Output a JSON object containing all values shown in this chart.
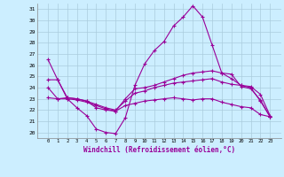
{
  "x": [
    0,
    1,
    2,
    3,
    4,
    5,
    6,
    7,
    8,
    9,
    10,
    11,
    12,
    13,
    14,
    15,
    16,
    17,
    18,
    19,
    20,
    21,
    22,
    23
  ],
  "line1": [
    26.5,
    24.7,
    23.0,
    22.2,
    21.5,
    20.3,
    20.0,
    19.9,
    21.3,
    24.2,
    26.1,
    27.3,
    28.1,
    29.5,
    30.3,
    31.3,
    30.3,
    27.8,
    25.3,
    24.8,
    24.2,
    24.0,
    22.8,
    21.4
  ],
  "line2": [
    24.7,
    24.7,
    23.1,
    23.0,
    22.8,
    22.2,
    22.0,
    21.9,
    23.0,
    23.9,
    24.0,
    24.2,
    24.5,
    24.8,
    25.1,
    25.3,
    25.4,
    25.5,
    25.3,
    25.2,
    24.1,
    23.9,
    22.9,
    21.4
  ],
  "line3": [
    24.0,
    23.0,
    23.1,
    23.0,
    22.8,
    22.5,
    22.2,
    22.0,
    22.8,
    23.5,
    23.7,
    24.0,
    24.2,
    24.4,
    24.5,
    24.6,
    24.7,
    24.8,
    24.5,
    24.3,
    24.2,
    24.1,
    23.4,
    21.5
  ],
  "line4": [
    23.1,
    23.0,
    23.0,
    22.9,
    22.7,
    22.4,
    22.1,
    21.9,
    22.4,
    22.6,
    22.8,
    22.9,
    23.0,
    23.1,
    23.0,
    22.9,
    23.0,
    23.0,
    22.7,
    22.5,
    22.3,
    22.2,
    21.6,
    21.4
  ],
  "xlabel": "Windchill (Refroidissement éolien,°C)",
  "ylim": [
    19.5,
    31.5
  ],
  "yticks": [
    20,
    21,
    22,
    23,
    24,
    25,
    26,
    27,
    28,
    29,
    30,
    31
  ],
  "xticks": [
    0,
    1,
    2,
    3,
    4,
    5,
    6,
    7,
    8,
    9,
    10,
    11,
    12,
    13,
    14,
    15,
    16,
    17,
    18,
    19,
    20,
    21,
    22,
    23
  ],
  "line_color": "#990099",
  "bg_color": "#cceeff",
  "grid_color": "#aaccdd"
}
